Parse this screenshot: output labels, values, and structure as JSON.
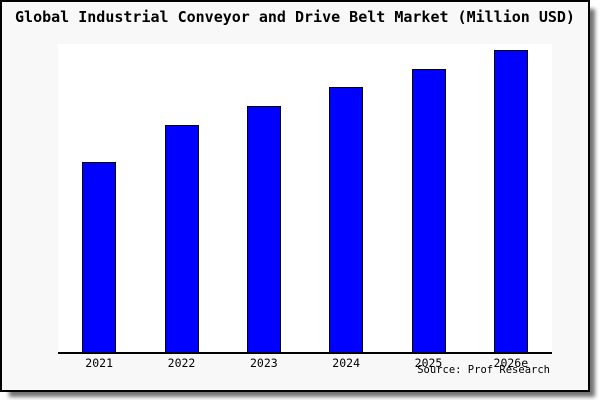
{
  "title": "Global Industrial Conveyor and Drive Belt Market (Million USD)",
  "source": "Source: Prof Research",
  "colors": {
    "bar_fill": "#0000ff",
    "bar_border": "#000000",
    "card_background": "#f8f8f8",
    "plot_background": "#ffffff",
    "axis": "#000000",
    "text": "#000000"
  },
  "chart_data": {
    "type": "bar",
    "title": "Global Industrial Conveyor and Drive Belt Market (Million USD)",
    "categories": [
      "2021",
      "2022",
      "2023",
      "2024",
      "2025",
      "2026e"
    ],
    "values": [
      62.9,
      75.2,
      81.5,
      87.7,
      93.7,
      100
    ],
    "values_note": "No y-axis scale or data labels are shown in the chart; values are relative estimates from bar heights, normalized so 2026e = 100.",
    "xlabel": "",
    "ylabel": "",
    "ylim": [
      0,
      102
    ],
    "grid": false,
    "legend": false,
    "annotations": [
      "Source: Prof Research"
    ]
  }
}
